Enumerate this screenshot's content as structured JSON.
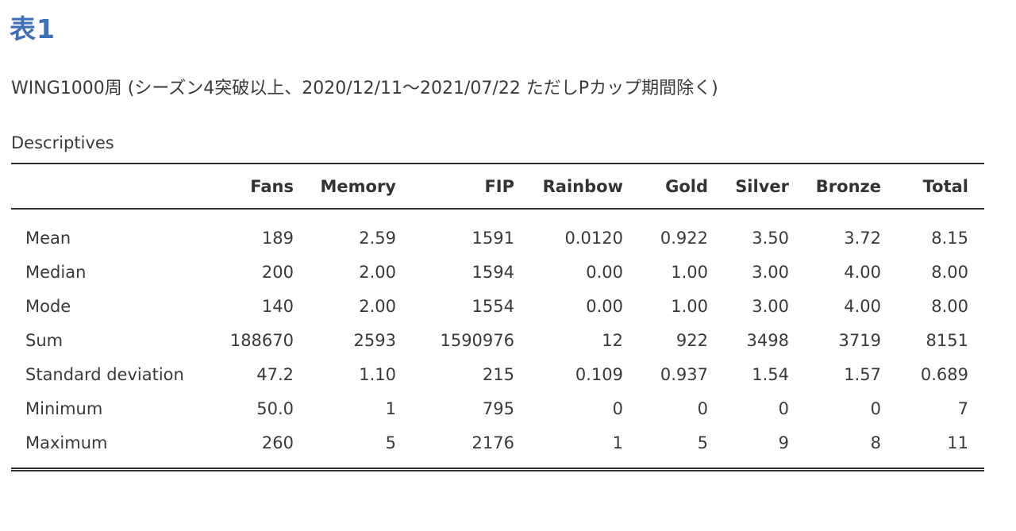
{
  "title": "表1",
  "subtitle": "WING1000周 (シーズン4突破以上、2020/12/11〜2021/07/22 ただしPカップ期間除く)",
  "table": {
    "caption": "Descriptives",
    "columns": [
      "Fans",
      "Memory",
      "FIP",
      "Rainbow",
      "Gold",
      "Silver",
      "Bronze",
      "Total"
    ],
    "rows": [
      {
        "label": "Mean",
        "values": [
          "189",
          "2.59",
          "1591",
          "0.0120",
          "0.922",
          "3.50",
          "3.72",
          "8.15"
        ]
      },
      {
        "label": "Median",
        "values": [
          "200",
          "2.00",
          "1594",
          "0.00",
          "1.00",
          "3.00",
          "4.00",
          "8.00"
        ]
      },
      {
        "label": "Mode",
        "values": [
          "140",
          "2.00",
          "1554",
          "0.00",
          "1.00",
          "3.00",
          "4.00",
          "8.00"
        ]
      },
      {
        "label": "Sum",
        "values": [
          "188670",
          "2593",
          "1590976",
          "12",
          "922",
          "3498",
          "3719",
          "8151"
        ]
      },
      {
        "label": "Standard deviation",
        "values": [
          "47.2",
          "1.10",
          "215",
          "0.109",
          "0.937",
          "1.54",
          "1.57",
          "0.689"
        ]
      },
      {
        "label": "Minimum",
        "values": [
          "50.0",
          "1",
          "795",
          "0",
          "0",
          "0",
          "0",
          "7"
        ]
      },
      {
        "label": "Maximum",
        "values": [
          "260",
          "5",
          "2176",
          "1",
          "5",
          "9",
          "8",
          "11"
        ]
      }
    ]
  }
}
